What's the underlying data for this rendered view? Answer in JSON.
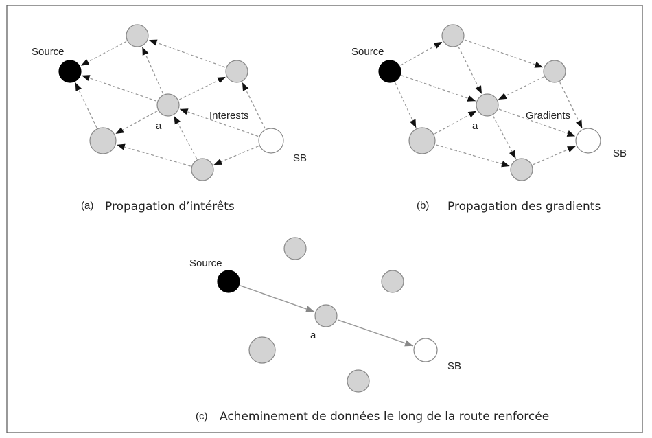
{
  "panels": [
    {
      "source": "Source",
      "relay": "a",
      "flow": "Interests",
      "sink": "SB",
      "caption_letter": "(a)",
      "caption": "Propagation d’intérêts"
    },
    {
      "source": "Source",
      "relay": "a",
      "flow": "Gradients",
      "sink": "SB",
      "caption_letter": "(b)",
      "caption": "Propagation des gradients"
    },
    {
      "source": "Source",
      "relay": "a",
      "sink": "SB",
      "caption_letter": "(c)",
      "caption": "Acheminement de données  le long de la route renforcée"
    }
  ]
}
